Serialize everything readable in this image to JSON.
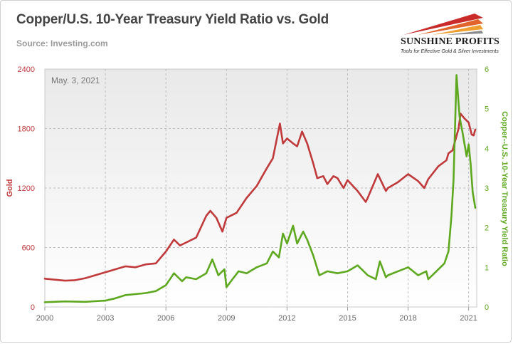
{
  "title": "Copper/U.S. 10-Year Treasury Yield Ratio vs. Gold",
  "source": "Source: Investing.com",
  "logo": {
    "name": "SUNSHINE PROFITS",
    "tagline": "Tools for Effective Gold & Silver Investments"
  },
  "chart_data": {
    "type": "line",
    "date_label": "May. 3, 2021",
    "x_ticks": [
      "2000",
      "2003",
      "2006",
      "2009",
      "2012",
      "2015",
      "2018",
      "2021"
    ],
    "xlim": [
      2000,
      2021.4
    ],
    "grid": true,
    "y_left": {
      "label": "Gold",
      "ylim": [
        0,
        2400
      ],
      "ticks": [
        "0",
        "600",
        "1200",
        "1800",
        "2400"
      ],
      "color": "#c0393b"
    },
    "y_right": {
      "label": "Copper--U.S. 10-Year Treasury Yield Ratio",
      "ylim": [
        0,
        6
      ],
      "ticks": [
        "0",
        "1",
        "2",
        "3",
        "4",
        "5",
        "6"
      ],
      "color": "#5ea81f"
    },
    "series": [
      {
        "axis": "left",
        "x": [
          2000.0,
          2001.0,
          2001.5,
          2002.0,
          2003.0,
          2004.0,
          2004.5,
          2005.0,
          2005.5,
          2006.0,
          2006.4,
          2006.7,
          2007.0,
          2007.5,
          2008.0,
          2008.2,
          2008.5,
          2008.8,
          2009.0,
          2009.5,
          2010.0,
          2010.5,
          2011.0,
          2011.3,
          2011.65,
          2011.8,
          2012.0,
          2012.3,
          2012.5,
          2012.75,
          2013.0,
          2013.3,
          2013.5,
          2013.8,
          2014.0,
          2014.3,
          2014.5,
          2014.8,
          2015.0,
          2015.5,
          2015.9,
          2016.0,
          2016.5,
          2016.9,
          2017.0,
          2017.5,
          2018.0,
          2018.5,
          2018.8,
          2019.0,
          2019.5,
          2019.9,
          2020.0,
          2020.2,
          2020.5,
          2020.6,
          2020.8,
          2021.0,
          2021.15,
          2021.25,
          2021.33
        ],
        "values": [
          285,
          265,
          270,
          290,
          350,
          410,
          400,
          430,
          440,
          560,
          680,
          620,
          650,
          700,
          920,
          970,
          900,
          760,
          900,
          950,
          1100,
          1220,
          1400,
          1500,
          1850,
          1650,
          1700,
          1650,
          1620,
          1770,
          1650,
          1450,
          1300,
          1320,
          1240,
          1320,
          1300,
          1200,
          1280,
          1170,
          1060,
          1100,
          1340,
          1170,
          1200,
          1260,
          1340,
          1270,
          1200,
          1290,
          1420,
          1480,
          1550,
          1580,
          1800,
          1950,
          1900,
          1860,
          1740,
          1730,
          1790
        ]
      },
      {
        "axis": "right",
        "x": [
          2000.0,
          2001.0,
          2002.0,
          2003.0,
          2003.5,
          2004.0,
          2005.0,
          2005.5,
          2006.0,
          2006.4,
          2006.8,
          2007.0,
          2007.5,
          2008.0,
          2008.3,
          2008.6,
          2008.9,
          2009.0,
          2009.3,
          2009.6,
          2010.0,
          2010.5,
          2011.0,
          2011.3,
          2011.6,
          2011.8,
          2012.0,
          2012.3,
          2012.5,
          2012.8,
          2013.0,
          2013.3,
          2013.6,
          2014.0,
          2014.5,
          2015.0,
          2015.5,
          2015.9,
          2016.0,
          2016.4,
          2016.6,
          2016.9,
          2017.0,
          2017.5,
          2018.0,
          2018.5,
          2018.9,
          2019.0,
          2019.4,
          2019.8,
          2020.0,
          2020.15,
          2020.25,
          2020.4,
          2020.55,
          2020.7,
          2020.9,
          2021.0,
          2021.1,
          2021.2,
          2021.33
        ],
        "values": [
          0.12,
          0.14,
          0.13,
          0.16,
          0.22,
          0.3,
          0.35,
          0.4,
          0.55,
          0.85,
          0.65,
          0.75,
          0.7,
          0.85,
          1.2,
          0.8,
          0.95,
          0.5,
          0.7,
          0.9,
          0.85,
          1.0,
          1.1,
          1.4,
          1.25,
          1.85,
          1.6,
          2.05,
          1.6,
          1.9,
          1.7,
          1.3,
          0.8,
          0.9,
          0.85,
          0.9,
          1.05,
          0.85,
          0.8,
          0.7,
          1.15,
          0.75,
          0.8,
          0.9,
          1.0,
          0.8,
          0.9,
          0.7,
          0.9,
          1.1,
          1.4,
          2.3,
          3.2,
          5.85,
          4.8,
          4.4,
          3.8,
          4.1,
          3.6,
          2.9,
          2.5
        ]
      }
    ]
  }
}
